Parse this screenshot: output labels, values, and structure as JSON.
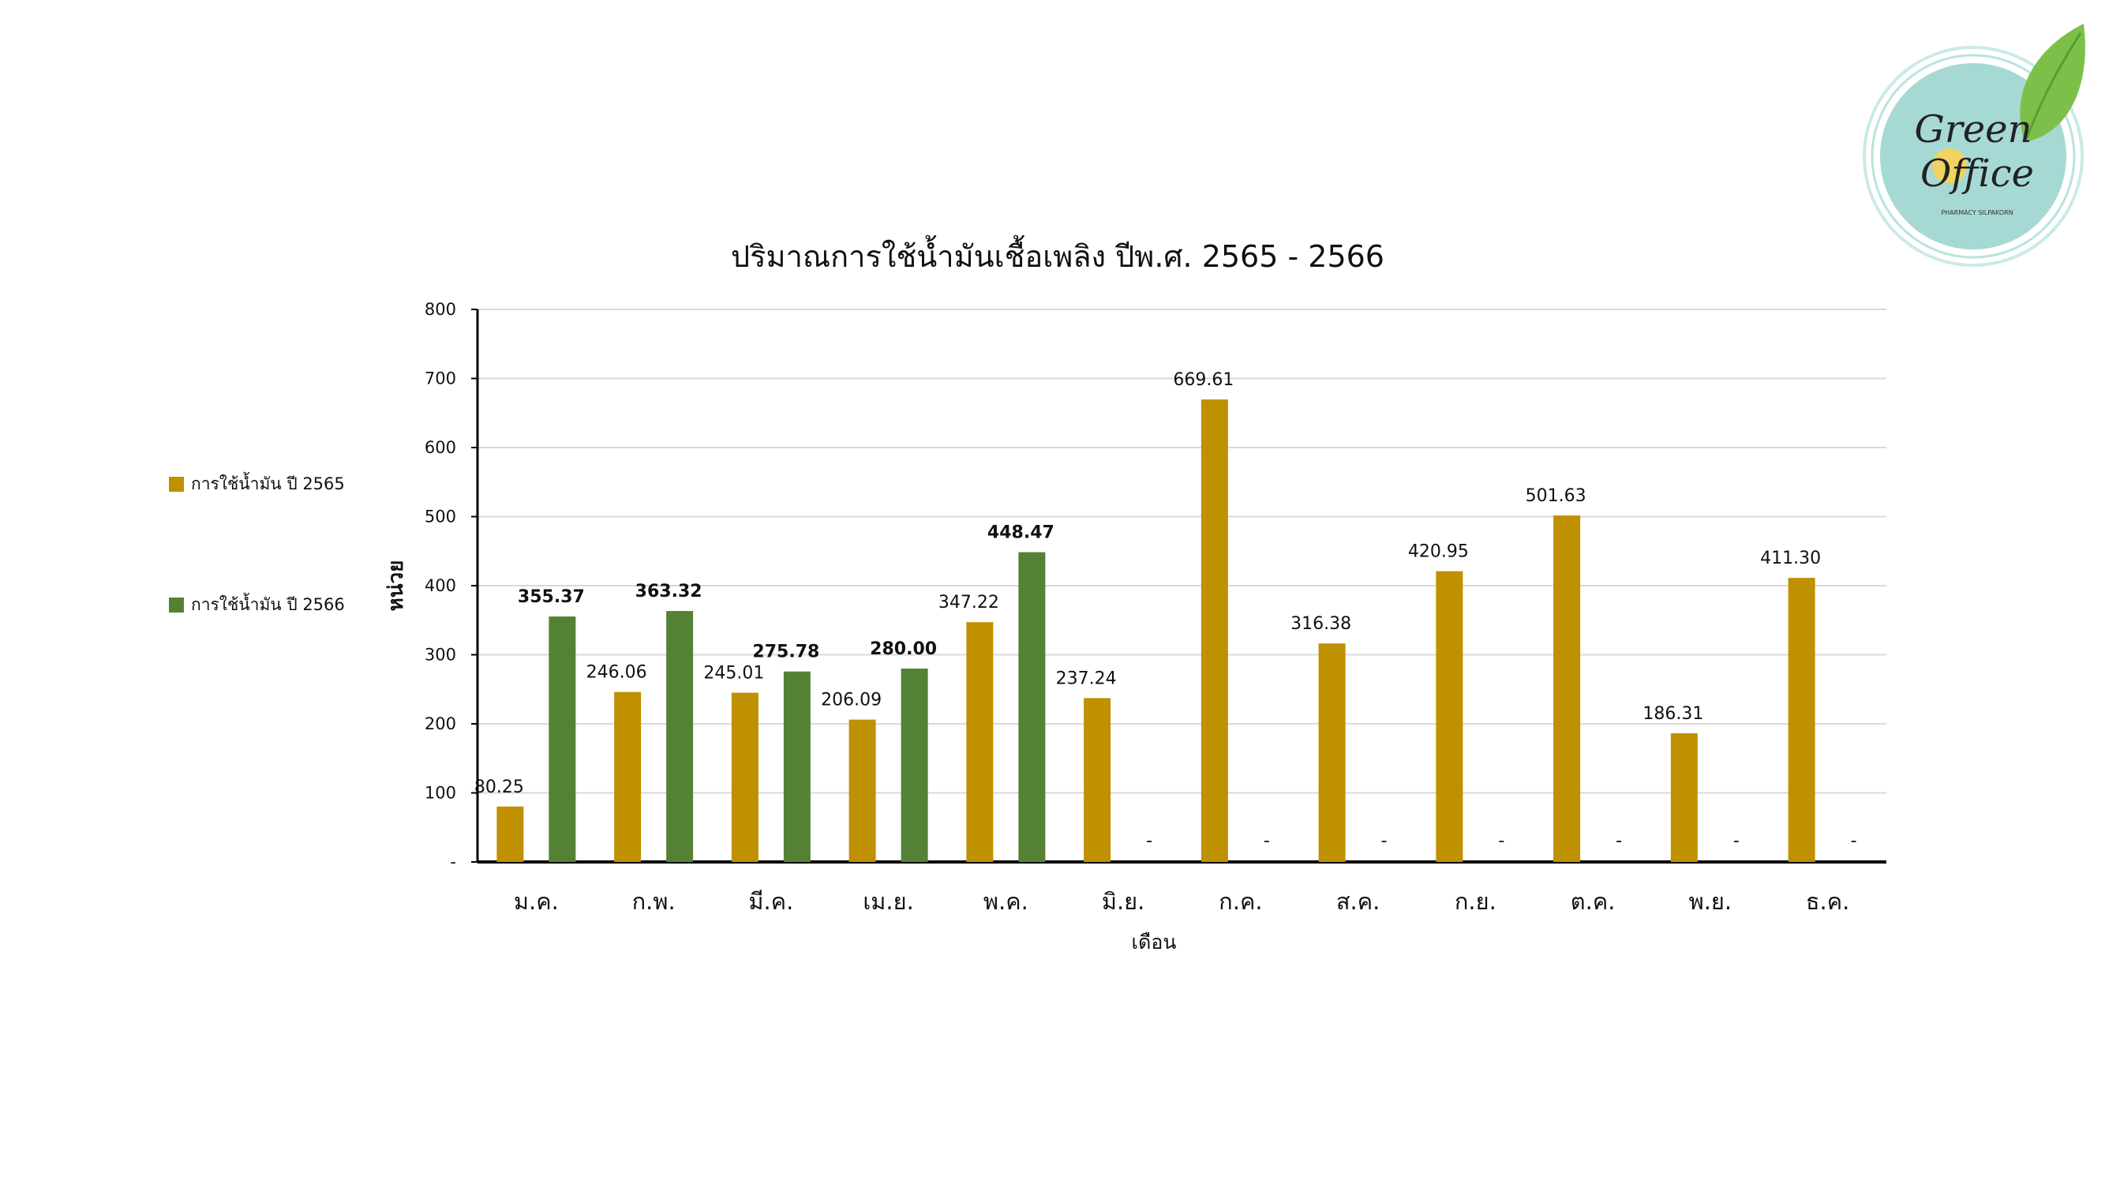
{
  "logo": {
    "line1": "Green",
    "line2": "Office",
    "tagline": "PHARMACY SILPAKORN",
    "colors": {
      "circle": "#a6d9d3",
      "ring": "#bfe6e1",
      "leaf": "#7cc04a",
      "leaf_dark": "#5a9e32",
      "dot": "#f1d35f",
      "text": "#222222"
    }
  },
  "chart_data": {
    "type": "bar",
    "title": "ปริมาณการใช้น้ำมันเชื้อเพลิง ปีพ.ศ. 2565 - 2566",
    "xlabel": "เดือน",
    "ylabel": "หน่วย",
    "ylim": [
      0,
      800
    ],
    "yticks": [
      0,
      100,
      200,
      300,
      400,
      500,
      600,
      700,
      800
    ],
    "ytick_labels": [
      "-",
      "100",
      "200",
      "300",
      "400",
      "500",
      "600",
      "700",
      "800"
    ],
    "grid": true,
    "legend_position": "left",
    "categories": [
      "ม.ค.",
      "ก.พ.",
      "มี.ค.",
      "เม.ย.",
      "พ.ค.",
      "มิ.ย.",
      "ก.ค.",
      "ส.ค.",
      "ก.ย.",
      "ต.ค.",
      "พ.ย.",
      "ธ.ค."
    ],
    "series": [
      {
        "name": "การใช้น้ำมัน ปี 2565",
        "color": "#bf9000",
        "values": [
          80.25,
          246.06,
          245.01,
          206.09,
          347.22,
          237.24,
          669.61,
          316.38,
          420.95,
          501.63,
          186.31,
          411.3
        ],
        "labels": [
          "80.25",
          "246.06",
          "245.01",
          "206.09",
          "347.22",
          "237.24",
          "669.61",
          "316.38",
          "420.95",
          "501.63",
          "186.31",
          "411.30"
        ]
      },
      {
        "name": "การใช้น้ำมัน ปี 2566",
        "color": "#548235",
        "values": [
          355.37,
          363.32,
          275.78,
          280.0,
          448.47,
          null,
          null,
          null,
          null,
          null,
          null,
          null
        ],
        "labels": [
          "355.37",
          "363.32",
          "275.78",
          "280.00",
          "448.47",
          "-",
          "-",
          "-",
          "-",
          "-",
          "-",
          "-"
        ]
      }
    ]
  }
}
